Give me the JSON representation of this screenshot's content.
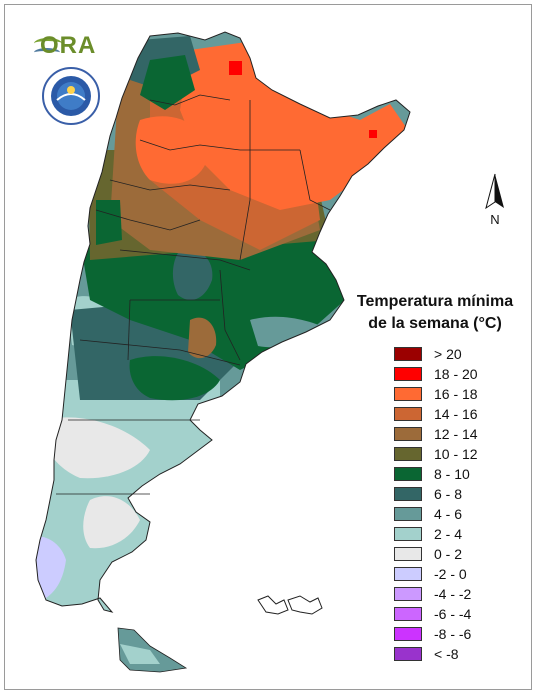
{
  "legend": {
    "title_line1": "Temperatura mínima",
    "title_line2": "de la semana (°C)",
    "classes": [
      {
        "label": "> 20",
        "color": "#9b0000"
      },
      {
        "label": "18 - 20",
        "color": "#ff0000"
      },
      {
        "label": "16 - 18",
        "color": "#ff6a33"
      },
      {
        "label": "14 - 16",
        "color": "#cc6633"
      },
      {
        "label": "12 - 14",
        "color": "#9c6b3a"
      },
      {
        "label": "10 - 12",
        "color": "#66662f"
      },
      {
        "label": "8 - 10",
        "color": "#0a6633"
      },
      {
        "label": "6 - 8",
        "color": "#336666"
      },
      {
        "label": "4 - 6",
        "color": "#669a99"
      },
      {
        "label": "2 - 4",
        "color": "#a3d1cc"
      },
      {
        "label": "0 - 2",
        "color": "#e8e8e8"
      },
      {
        "label": "-2 - 0",
        "color": "#ccccff"
      },
      {
        "label": "-4 - -2",
        "color": "#cc99ff"
      },
      {
        "label": "-6 - -4",
        "color": "#cc66ff"
      },
      {
        "label": "-8 - -6",
        "color": "#cc33ff"
      },
      {
        "label": "< -8",
        "color": "#9933cc"
      }
    ]
  },
  "north_arrow": {
    "label": "N"
  },
  "logos": {
    "ora": "ORA",
    "smn_icon": "smn-seal-icon"
  }
}
